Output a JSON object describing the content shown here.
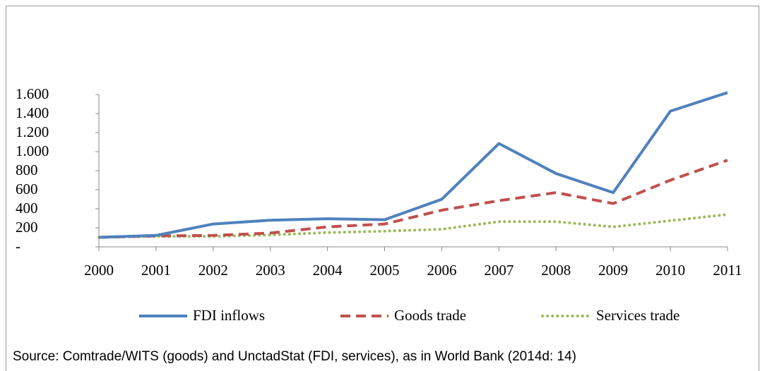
{
  "chart_data": {
    "type": "line",
    "categories": [
      "2000",
      "2001",
      "2002",
      "2003",
      "2004",
      "2005",
      "2006",
      "2007",
      "2008",
      "2009",
      "2010",
      "2011"
    ],
    "series": [
      {
        "name": "FDI inflows",
        "color": "#4f81bd",
        "values": [
          100,
          120,
          240,
          280,
          295,
          285,
          500,
          1085,
          770,
          570,
          1425,
          1620
        ]
      },
      {
        "name": "Goods trade",
        "color": "#c0504d",
        "values": [
          100,
          115,
          120,
          145,
          210,
          240,
          385,
          485,
          570,
          455,
          700,
          910
        ]
      },
      {
        "name": "Services trade",
        "color": "#9bbb59",
        "values": [
          100,
          110,
          110,
          125,
          150,
          165,
          185,
          265,
          265,
          210,
          275,
          340
        ]
      }
    ],
    "ylim": [
      0,
      1600
    ],
    "yticks": [
      {
        "value": 0,
        "label": "-"
      },
      200,
      400,
      600,
      800,
      {
        "value": 1000,
        "label": "1.000"
      },
      {
        "value": 1200,
        "label": "1.200"
      },
      {
        "value": 1400,
        "label": "1.400"
      },
      {
        "value": 1600,
        "label": "1.600"
      }
    ],
    "legend": "bottom",
    "source": "Source:  Comtrade/WITS (goods) and UnctadStat (FDI, services), as in World Bank (2014d: 14)"
  }
}
